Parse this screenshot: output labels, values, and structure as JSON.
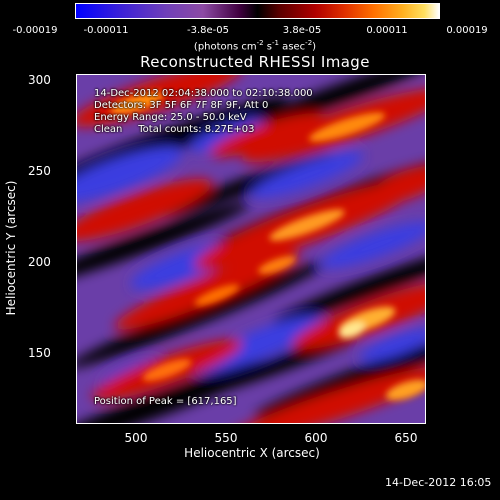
{
  "colorbar": {
    "tick_labels": [
      "-0.00019",
      "-0.00011",
      "-3.8e-05",
      "3.8e-05",
      "0.00011",
      "0.00019"
    ],
    "unit_prefix": "(photons cm",
    "unit_exp1": "-2",
    "unit_mid1": " s",
    "unit_exp2": "-1",
    "unit_mid2": " asec",
    "unit_exp3": "-2",
    "unit_suffix": ")",
    "colors": [
      "#0000ff",
      "#3a20d8",
      "#7040b8",
      "#8c4aa4",
      "#400040",
      "#000000",
      "#5a0000",
      "#b00000",
      "#e03000",
      "#ff7000",
      "#ffb020",
      "#ffe060",
      "#ffffff"
    ]
  },
  "title": "Reconstructed RHESSI Image",
  "info": {
    "time_range": "14-Dec-2012 02:04:38.000 to 02:10:38.000",
    "detectors": "Detectors: 3F 5F 6F 7F 8F 9F, Att 0",
    "energy": "Energy Range: 25.0 - 50.0 keV",
    "clean": "Clean     Total counts: 8.27E+03",
    "peak": "Position of Peak = [617,165]"
  },
  "axes": {
    "x_ticks": [
      "500",
      "550",
      "600",
      "650"
    ],
    "y_ticks": [
      "300",
      "250",
      "200",
      "150"
    ],
    "xlabel": "Heliocentric X (arcsec)",
    "ylabel": "Heliocentric Y (arcsec)",
    "xlim": [
      466,
      661
    ],
    "ylim": [
      107,
      302
    ]
  },
  "footer": {
    "date": "14-Dec-2012 16:05"
  }
}
